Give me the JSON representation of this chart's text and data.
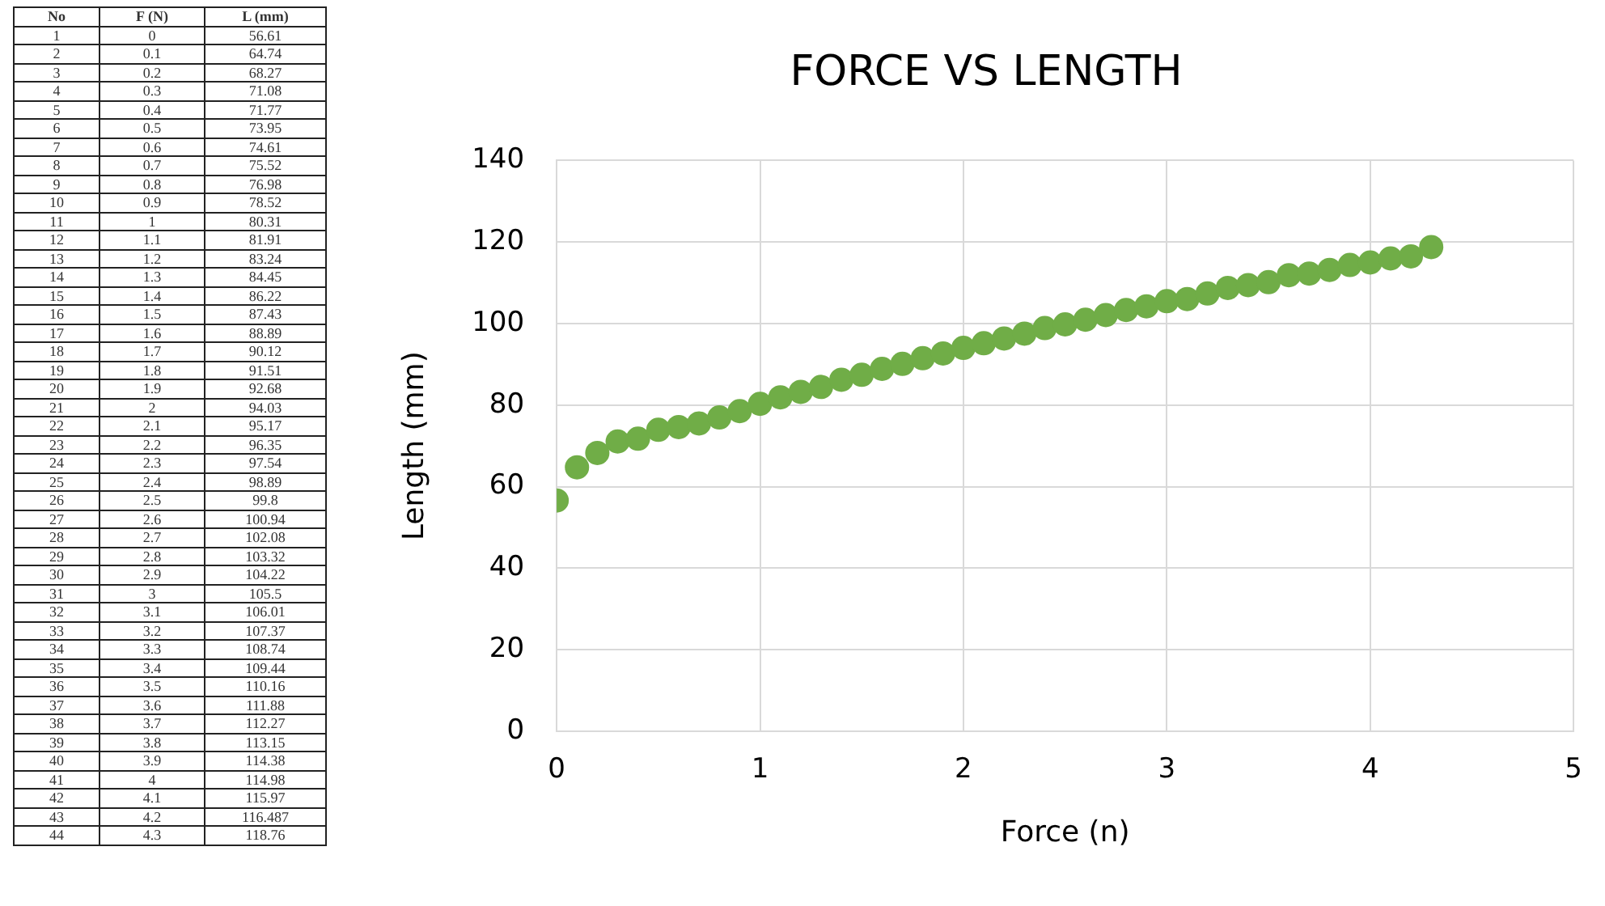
{
  "chart_data": [
    {
      "type": "other",
      "annotations": [
        "No",
        "F (N)",
        "L (mm)",
        "1",
        "0",
        "56.61",
        "2",
        "0.1",
        "64.74",
        "3",
        "0.2",
        "68.27",
        "4",
        "0.3",
        "71.08",
        "5",
        "0.4",
        "71.77",
        "6",
        "0.5",
        "73.95",
        "7",
        "0.6",
        "74.61",
        "8",
        "0.7",
        "75.52",
        "9",
        "0.8",
        "76.98",
        "10",
        "0.9",
        "78.52",
        "11",
        "1",
        "80.31",
        "12",
        "1.1",
        "81.91",
        "13",
        "1.2",
        "83.24",
        "14",
        "1.3",
        "84.45",
        "15",
        "1.4",
        "86.22",
        "16",
        "1.5",
        "87.43",
        "17",
        "1.6",
        "88.89",
        "18",
        "1.7",
        "90.12",
        "19",
        "1.8",
        "91.51",
        "20",
        "1.9",
        "92.68",
        "21",
        "2",
        "94.03",
        "22",
        "2.1",
        "95.17",
        "23",
        "2.2",
        "96.35",
        "24",
        "2.3",
        "97.54",
        "25",
        "2.4",
        "98.89",
        "26",
        "2.5",
        "99.8",
        "27",
        "2.6",
        "100.94",
        "28",
        "2.7",
        "102.08",
        "29",
        "2.8",
        "103.32",
        "30",
        "2.9",
        "104.22",
        "31",
        "3",
        "105.5",
        "32",
        "3.1",
        "106.01",
        "33",
        "3.2",
        "107.37",
        "34",
        "3.3",
        "108.74",
        "35",
        "3.4",
        "109.44",
        "36",
        "3.5",
        "110.16",
        "37",
        "3.6",
        "111.88",
        "38",
        "3.7",
        "112.27",
        "39",
        "3.8",
        "113.15",
        "40",
        "3.9",
        "114.38",
        "41",
        "4",
        "114.98",
        "42",
        "4.1",
        "115.97",
        "43",
        "4.2",
        "116.487",
        "44",
        "4.3",
        "118.76"
      ]
    },
    {
      "type": "scatter",
      "title": "FORCE VS LENGTH",
      "xlabel": "Force (n)",
      "ylabel": "Length (mm)",
      "x": [
        0,
        0.1,
        0.2,
        0.3,
        0.4,
        0.5,
        0.6,
        0.7,
        0.8,
        0.9,
        1,
        1.1,
        1.2,
        1.3,
        1.4,
        1.5,
        1.6,
        1.7,
        1.8,
        1.9,
        2,
        2.1,
        2.2,
        2.3,
        2.4,
        2.5,
        2.6,
        2.7,
        2.8,
        2.9,
        3,
        3.1,
        3.2,
        3.3,
        3.4,
        3.5,
        3.6,
        3.7,
        3.8,
        3.9,
        4,
        4.1,
        4.2,
        4.3
      ],
      "series": [
        {
          "color": "#70ad47",
          "values": [
            56.61,
            64.74,
            68.27,
            71.08,
            71.77,
            73.95,
            74.61,
            75.52,
            76.98,
            78.52,
            80.31,
            81.91,
            83.24,
            84.45,
            86.22,
            87.43,
            88.89,
            90.12,
            91.51,
            92.68,
            94.03,
            95.17,
            96.35,
            97.54,
            98.89,
            99.8,
            100.94,
            102.08,
            103.32,
            104.22,
            105.5,
            106.01,
            107.37,
            108.74,
            109.44,
            110.16,
            111.88,
            112.27,
            113.15,
            114.38,
            114.98,
            115.97,
            116.487,
            118.76
          ]
        }
      ],
      "xlim": [
        0,
        5
      ],
      "xticks": [
        0,
        1,
        2,
        3,
        4,
        5
      ],
      "ylim": [
        0,
        140
      ],
      "yticks": [
        0,
        20,
        40,
        60,
        80,
        100,
        120,
        140
      ],
      "grid": true,
      "legend": false,
      "marker": "circle"
    }
  ]
}
